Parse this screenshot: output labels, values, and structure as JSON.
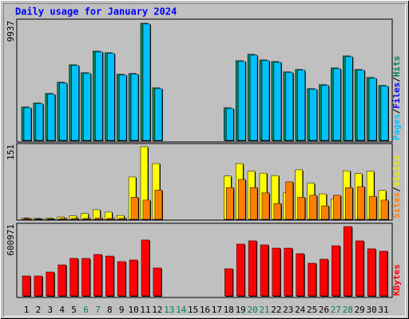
{
  "chart_data": [
    {
      "type": "bar",
      "title": "Daily usage for January 2024",
      "ylim": [
        0,
        9937
      ],
      "yticks": [
        9937
      ],
      "legend": [
        {
          "name": "Pages",
          "color": "#00c0ff"
        },
        {
          "name": "Files",
          "color": "#0000ff"
        },
        {
          "name": "Hits",
          "color": "#00805c"
        }
      ],
      "legend_separator": "/",
      "series": [
        {
          "name": "Hits",
          "color": "#00805c",
          "values": [
            2839,
            3177,
            3988,
            4935,
            6422,
            5746,
            7571,
            7436,
            5611,
            5678,
            9937,
            4462,
            0,
            0,
            0,
            0,
            0,
            2772,
            6760,
            7301,
            6828,
            6692,
            5814,
            6016,
            4394,
            4732,
            6152,
            7166,
            6016,
            5341,
            4665
          ]
        },
        {
          "name": "Pages",
          "color": "#00c0ff",
          "values": [
            2770,
            3110,
            3920,
            4870,
            6350,
            5680,
            7500,
            7370,
            5540,
            5610,
            9870,
            4390,
            0,
            0,
            0,
            0,
            0,
            2700,
            6690,
            7230,
            6760,
            6620,
            5750,
            5950,
            4330,
            4660,
            6080,
            7100,
            5950,
            5270,
            4600
          ]
        }
      ]
    },
    {
      "type": "bar",
      "ylim": [
        0,
        151
      ],
      "yticks": [
        151
      ],
      "legend": [
        {
          "name": "Sites",
          "color": "#ff8000"
        },
        {
          "name": "Visits",
          "color": "#e8e800"
        }
      ],
      "legend_separator": "/",
      "series": [
        {
          "name": "Visits",
          "color": "#ffff00",
          "values": [
            3,
            2,
            3,
            5,
            7,
            12,
            20,
            15,
            8,
            88,
            151,
            116,
            0,
            0,
            0,
            0,
            0,
            90,
            116,
            100,
            96,
            91,
            55,
            103,
            75,
            53,
            43,
            101,
            95,
            100,
            60
          ]
        },
        {
          "name": "Sites",
          "color": "#ff8000",
          "values": [
            2,
            1,
            1,
            2,
            2,
            2,
            3,
            2,
            2,
            46,
            40,
            61,
            0,
            0,
            0,
            0,
            0,
            66,
            83,
            66,
            55,
            33,
            78,
            46,
            50,
            28,
            50,
            66,
            68,
            48,
            40
          ]
        }
      ]
    },
    {
      "type": "bar",
      "ylim": [
        0,
        600971
      ],
      "yticks": [
        600971
      ],
      "legend": [
        {
          "name": "KBytes",
          "color": "#ff0000"
        }
      ],
      "categories": [
        "1",
        "2",
        "3",
        "4",
        "5",
        "6",
        "7",
        "8",
        "9",
        "10",
        "11",
        "12",
        "13",
        "14",
        "15",
        "16",
        "17",
        "18",
        "19",
        "20",
        "21",
        "22",
        "23",
        "24",
        "25",
        "26",
        "27",
        "28",
        "29",
        "30",
        "31"
      ],
      "category_colors": [
        "#000000",
        "#000000",
        "#000000",
        "#000000",
        "#000000",
        "#00805c",
        "#00805c",
        "#000000",
        "#000000",
        "#000000",
        "#000000",
        "#000000",
        "#00805c",
        "#00805c",
        "#000000",
        "#000000",
        "#000000",
        "#000000",
        "#000000",
        "#00805c",
        "#00805c",
        "#000000",
        "#000000",
        "#000000",
        "#000000",
        "#000000",
        "#00805c",
        "#00805c",
        "#000000",
        "#000000",
        "#000000"
      ],
      "series": [
        {
          "name": "KBytes",
          "color": "#ff0000",
          "values": [
            172700,
            172700,
            207000,
            269000,
            325000,
            325000,
            359000,
            345000,
            297000,
            311000,
            484000,
            242000,
            0,
            0,
            0,
            0,
            0,
            235000,
            449000,
            477000,
            442000,
            414000,
            414000,
            366000,
            283000,
            318000,
            435000,
            600971,
            477000,
            408000,
            387000
          ]
        }
      ]
    }
  ]
}
